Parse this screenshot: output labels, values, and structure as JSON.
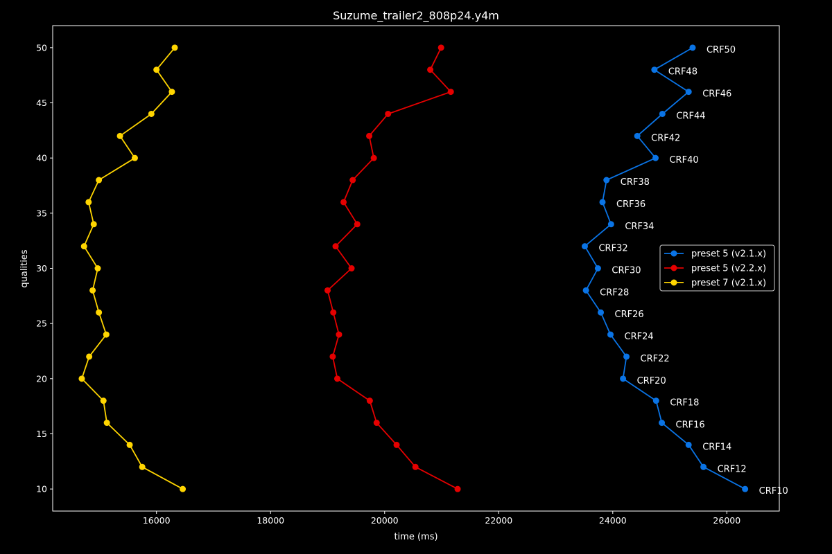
{
  "chart_data": {
    "type": "line",
    "title": "Suzume_trailer2_808p24.y4m",
    "xlabel": "time (ms)",
    "ylabel": "qualities",
    "xlim": [
      14180,
      26920
    ],
    "ylim": [
      8,
      52
    ],
    "xticks": [
      16000,
      18000,
      20000,
      22000,
      24000,
      26000
    ],
    "yticks": [
      10,
      15,
      20,
      25,
      30,
      35,
      40,
      45,
      50
    ],
    "grid": false,
    "legend_position": "center-right",
    "y": [
      50,
      48,
      46,
      44,
      42,
      40,
      38,
      36,
      34,
      32,
      30,
      28,
      26,
      24,
      22,
      20,
      18,
      16,
      14,
      12,
      10
    ],
    "series": [
      {
        "name": "preset 5 (v2.1.x)",
        "color": "#0a74e6",
        "x": [
          25400,
          24730,
          25330,
          24870,
          24430,
          24750,
          23890,
          23820,
          23970,
          23510,
          23740,
          23530,
          23790,
          23960,
          24240,
          24180,
          24760,
          24860,
          25330,
          25590,
          26320
        ],
        "point_labels": [
          "CRF50",
          "CRF48",
          "CRF46",
          "CRF44",
          "CRF42",
          "CRF40",
          "CRF38",
          "CRF36",
          "CRF34",
          "CRF32",
          "CRF30",
          "CRF28",
          "CRF26",
          "CRF24",
          "CRF22",
          "CRF20",
          "CRF18",
          "CRF16",
          "CRF14",
          "CRF12",
          "CRF10"
        ]
      },
      {
        "name": "preset 5 (v2.2.x)",
        "color": "#e60000",
        "x": [
          20990,
          20800,
          21160,
          20060,
          19730,
          19810,
          19440,
          19280,
          19520,
          19140,
          19420,
          19000,
          19100,
          19200,
          19090,
          19170,
          19740,
          19860,
          20210,
          20540,
          21280
        ]
      },
      {
        "name": "preset 7 (v2.1.x)",
        "color": "#ffd500",
        "x": [
          16320,
          16000,
          16270,
          15910,
          15360,
          15620,
          14990,
          14810,
          14900,
          14730,
          14970,
          14880,
          14990,
          15120,
          14820,
          14690,
          15070,
          15130,
          15530,
          15750,
          16460
        ]
      }
    ]
  }
}
